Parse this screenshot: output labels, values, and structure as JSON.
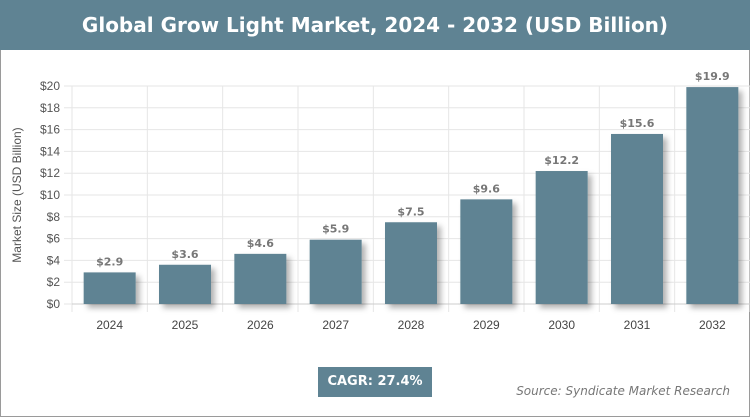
{
  "chart_data": {
    "type": "bar",
    "title": "Global Grow Light Market, 2024 - 2032 (USD Billion)",
    "xlabel": "",
    "ylabel": "Market Size (USD Billion)",
    "categories": [
      "2024",
      "2025",
      "2026",
      "2027",
      "2028",
      "2029",
      "2030",
      "2031",
      "2032"
    ],
    "values": [
      2.9,
      3.6,
      4.6,
      5.9,
      7.5,
      9.6,
      12.2,
      15.6,
      19.9
    ],
    "data_labels": [
      "$2.9",
      "$3.6",
      "$4.6",
      "$5.9",
      "$7.5",
      "$9.6",
      "$12.2",
      "$15.6",
      "$19.9"
    ],
    "ylim": [
      0,
      20
    ],
    "yticks": [
      0,
      2,
      4,
      6,
      8,
      10,
      12,
      14,
      16,
      18,
      20
    ],
    "ytick_labels": [
      "$0",
      "$2",
      "$4",
      "$6",
      "$8",
      "$10",
      "$12",
      "$14",
      "$16",
      "$18",
      "$20"
    ],
    "grid": true,
    "bar_color": "#5f8393"
  },
  "cagr": "CAGR: 27.4%",
  "source": "Source: Syndicate Market Research"
}
